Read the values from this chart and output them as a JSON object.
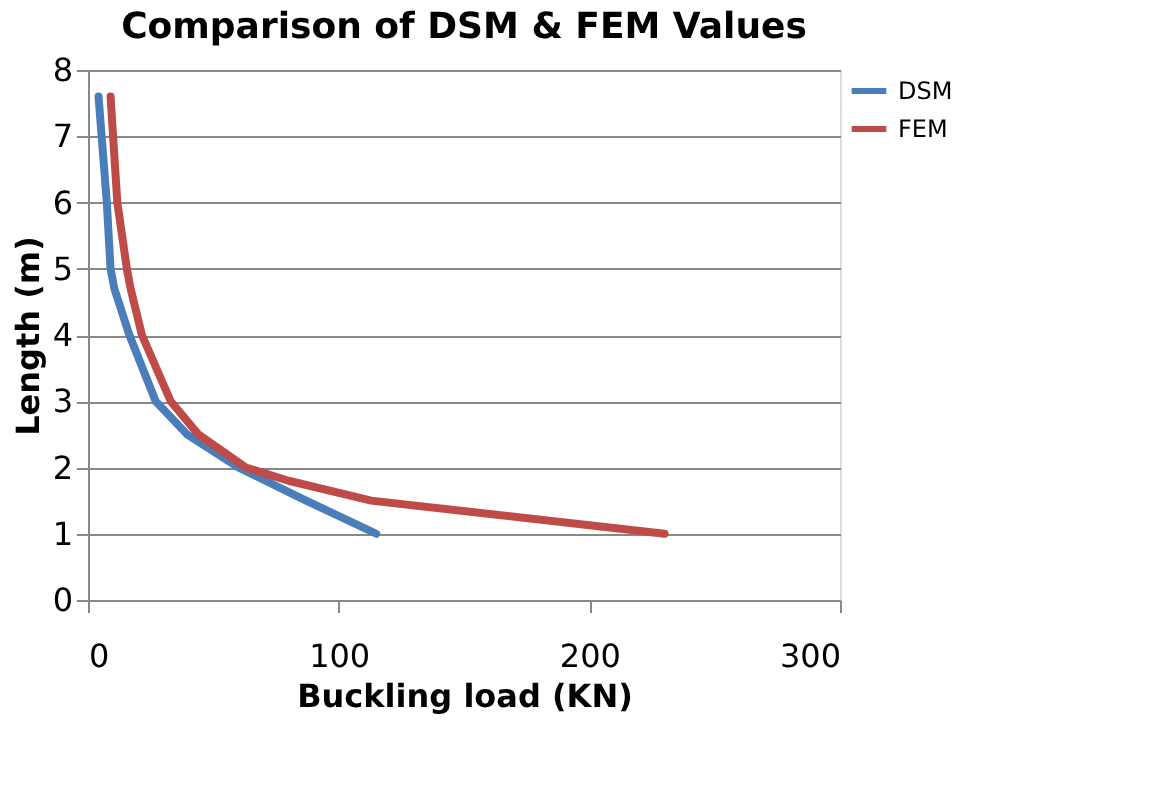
{
  "chart_data": {
    "type": "line",
    "title": "Comparison  of DSM & FEM Values",
    "xlabel": "Buckling load (KN)",
    "ylabel": "Length (m)",
    "xlim": [
      0,
      300
    ],
    "xticks": [
      0,
      100,
      200,
      300
    ],
    "ylim": [
      0,
      8
    ],
    "yticks": [
      0,
      1,
      2,
      3,
      4,
      5,
      6,
      7,
      8
    ],
    "grid": "y",
    "legend": "right",
    "marker": "none",
    "line_style": "solid",
    "series": [
      {
        "name": "DSM",
        "color": "#4a7ebb",
        "x": [
          115,
          87,
          60,
          39.5,
          27,
          16.5,
          10.5,
          9,
          7.5,
          4.2
        ],
        "values": [
          1,
          1.5,
          2,
          2.5,
          3,
          4,
          4.7,
          5,
          6,
          7.6
        ]
      },
      {
        "name": "FEM",
        "color": "#be4b48",
        "x": [
          230,
          113,
          80,
          63,
          44,
          33,
          21.5,
          17,
          15.5,
          11.7,
          9
        ],
        "values": [
          1,
          1.5,
          1.8,
          2,
          2.5,
          3,
          4,
          4.7,
          5,
          6,
          7.6
        ]
      }
    ]
  }
}
